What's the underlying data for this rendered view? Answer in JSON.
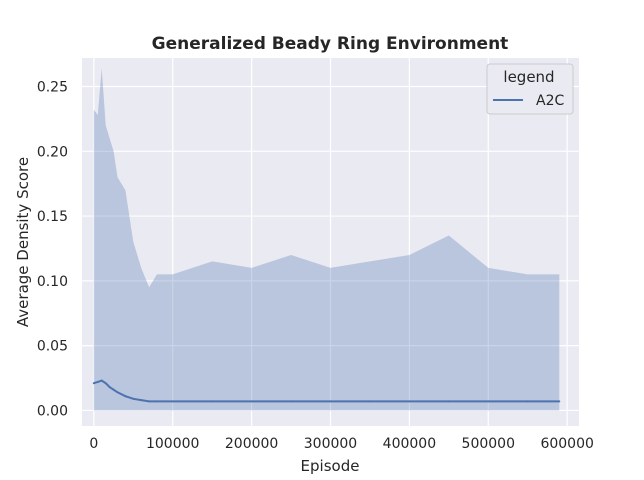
{
  "chart_data": {
    "type": "line",
    "title": "Generalized Beady Ring Environment",
    "xlabel": "Episode",
    "ylabel": "Average Density Score",
    "xlim": [
      -15000,
      615000
    ],
    "ylim": [
      -0.012,
      0.272
    ],
    "xticks": [
      0,
      100000,
      200000,
      300000,
      400000,
      500000,
      600000
    ],
    "xtick_labels": [
      "0",
      "100000",
      "200000",
      "300000",
      "400000",
      "500000",
      "600000"
    ],
    "yticks": [
      0.0,
      0.05,
      0.1,
      0.15,
      0.2,
      0.25
    ],
    "ytick_labels": [
      "0.00",
      "0.05",
      "0.10",
      "0.15",
      "0.20",
      "0.25"
    ],
    "grid": true,
    "legend_title": "legend",
    "legend_position": "top-right",
    "series": [
      {
        "name": "A2C",
        "color": "#4c72b0",
        "band_color": "#4c72b0",
        "x": [
          0,
          5000,
          10000,
          15000,
          20000,
          25000,
          30000,
          40000,
          50000,
          60000,
          70000,
          80000,
          100000,
          150000,
          200000,
          250000,
          300000,
          350000,
          400000,
          450000,
          500000,
          550000,
          590000
        ],
        "y": [
          0.021,
          0.022,
          0.023,
          0.021,
          0.018,
          0.016,
          0.014,
          0.011,
          0.009,
          0.008,
          0.007,
          0.007,
          0.007,
          0.007,
          0.007,
          0.007,
          0.007,
          0.007,
          0.007,
          0.007,
          0.007,
          0.007,
          0.007
        ],
        "band_upper": [
          0.232,
          0.228,
          0.264,
          0.22,
          0.21,
          0.2,
          0.18,
          0.17,
          0.13,
          0.11,
          0.095,
          0.105,
          0.105,
          0.115,
          0.11,
          0.12,
          0.11,
          0.115,
          0.12,
          0.135,
          0.11,
          0.105,
          0.105
        ],
        "band_lower": [
          0.0,
          0.0,
          0.0,
          0.0,
          0.0,
          0.0,
          0.0,
          0.0,
          0.0,
          0.0,
          0.0,
          0.0,
          0.0,
          0.0,
          0.0,
          0.0,
          0.0,
          0.0,
          0.0,
          0.0,
          0.0,
          0.0,
          0.0
        ]
      }
    ]
  }
}
